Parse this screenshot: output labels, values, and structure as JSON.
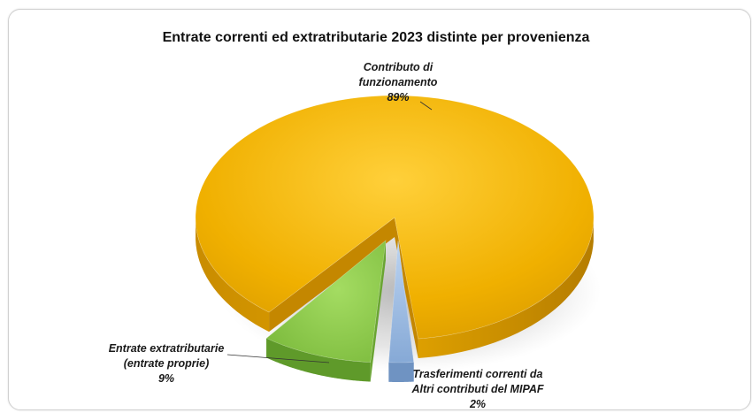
{
  "chart_data": {
    "type": "pie",
    "title": "Entrate correnti ed extratributarie 2023 distinte per provenienza",
    "slices": [
      {
        "name": "Contributo di funzionamento",
        "label_lines": [
          "Contributo di",
          "funzionamento"
        ],
        "value": 89,
        "pct_label": "89%",
        "color": "#f0b000"
      },
      {
        "name": "Trasferimenti correnti da Altri contributi del MIPAF",
        "label_lines": [
          "Trasferimenti correnti da",
          "Altri contributi del MIPAF"
        ],
        "value": 2,
        "pct_label": "2%",
        "color": "#9cbde6"
      },
      {
        "name": "Entrate extratributarie (entrate proprie)",
        "label_lines": [
          "Entrate extratributarie",
          "(entrate proprie)"
        ],
        "value": 9,
        "pct_label": "9%",
        "color": "#8fce4a"
      }
    ],
    "legend": "none",
    "style": "3d-exploded"
  }
}
